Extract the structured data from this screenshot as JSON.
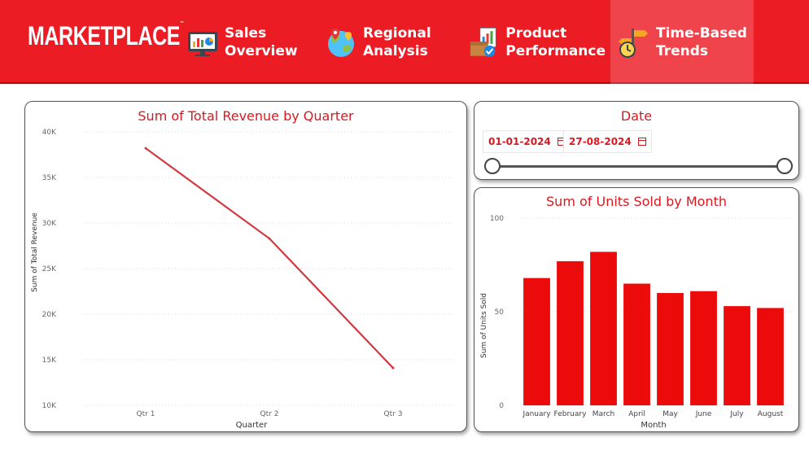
{
  "header": {
    "logo": "MARKETPLACE",
    "tabs": [
      {
        "label": "Sales\nOverview",
        "icon": "monitor-chart-icon",
        "active": false
      },
      {
        "label": "Regional\nAnalysis",
        "icon": "globe-pins-icon",
        "active": false
      },
      {
        "label": "Product\nPerformance",
        "icon": "box-report-icon",
        "active": false
      },
      {
        "label": "Time-Based\nTrends",
        "icon": "clock-signpost-icon",
        "active": true
      }
    ]
  },
  "colors": {
    "brand": "#ec1c24",
    "title": "#d71920",
    "line": "#d1393f",
    "bar": "#ec0b0b"
  },
  "date_filter": {
    "title": "Date",
    "start": "01-01-2024",
    "end": "27-08-2024"
  },
  "chart_data": [
    {
      "type": "line",
      "title": "Sum of Total Revenue by Quarter",
      "xlabel": "Quarter",
      "ylabel": "Sum of Total Revenue",
      "categories": [
        "Qtr 1",
        "Qtr 2",
        "Qtr 3"
      ],
      "values": [
        38200,
        28300,
        14100
      ],
      "ylim": [
        10000,
        40000
      ],
      "yticks": [
        {
          "v": 10000,
          "l": "10K"
        },
        {
          "v": 15000,
          "l": "15K"
        },
        {
          "v": 20000,
          "l": "20K"
        },
        {
          "v": 25000,
          "l": "25K"
        },
        {
          "v": 30000,
          "l": "30K"
        },
        {
          "v": 35000,
          "l": "35K"
        },
        {
          "v": 40000,
          "l": "40K"
        }
      ],
      "grid": true
    },
    {
      "type": "bar",
      "title": "Sum of Units Sold by Month",
      "xlabel": "Month",
      "ylabel": "Sum of Units Sold",
      "categories": [
        "January",
        "February",
        "March",
        "April",
        "May",
        "June",
        "July",
        "August"
      ],
      "values": [
        68,
        77,
        82,
        65,
        60,
        61,
        53,
        52
      ],
      "ylim": [
        0,
        100
      ],
      "yticks": [
        {
          "v": 0,
          "l": "0"
        },
        {
          "v": 50,
          "l": "50"
        },
        {
          "v": 100,
          "l": "100"
        }
      ],
      "grid": true
    }
  ]
}
